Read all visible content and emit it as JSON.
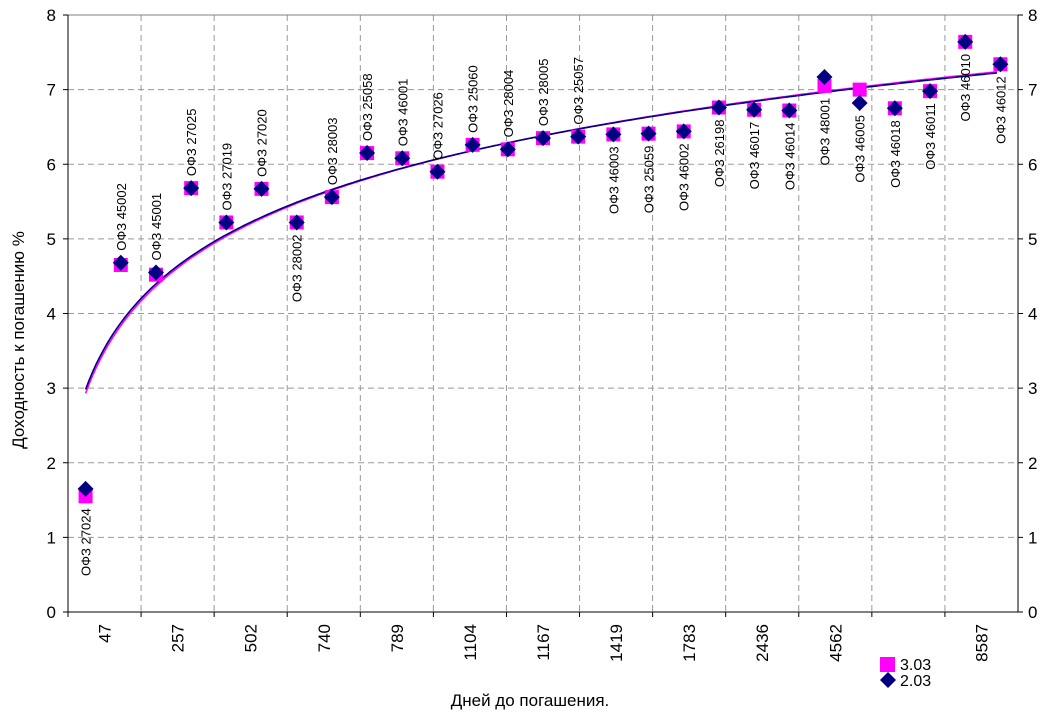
{
  "chart_data": {
    "type": "scatter",
    "xlabel": "Дней до погашения.",
    "ylabel": "Доходность к погашению %",
    "ylim": [
      0,
      8
    ],
    "yticks": [
      "0",
      "1",
      "2",
      "3",
      "4",
      "5",
      "6",
      "7",
      "8"
    ],
    "grid": true,
    "legend_position": "bottom-right",
    "x_tick_labels": [
      "47",
      "257",
      "502",
      "740",
      "789",
      "1104",
      "1167",
      "1419",
      "1783",
      "2436",
      "4562",
      "",
      "8587"
    ],
    "points": [
      {
        "label": "ОФЗ 27024",
        "s303": 1.55,
        "s203": 1.65,
        "label_side": "below"
      },
      {
        "label": "ОФЗ 45002",
        "s303": 4.65,
        "s203": 4.68,
        "label_side": "above"
      },
      {
        "label": "ОФЗ 45001",
        "s303": 4.52,
        "s203": 4.55,
        "label_side": "above"
      },
      {
        "label": "ОФЗ 27025",
        "s303": 5.68,
        "s203": 5.68,
        "label_side": "above"
      },
      {
        "label": "ОФЗ 27019",
        "s303": 5.22,
        "s203": 5.22,
        "label_side": "above"
      },
      {
        "label": "ОФЗ 27020",
        "s303": 5.67,
        "s203": 5.67,
        "label_side": "above"
      },
      {
        "label": "ОФЗ 28002",
        "s303": 5.22,
        "s203": 5.22,
        "label_side": "below"
      },
      {
        "label": "ОФЗ 28003",
        "s303": 5.56,
        "s203": 5.56,
        "label_side": "above"
      },
      {
        "label": "ОФЗ 25058",
        "s303": 6.15,
        "s203": 6.15,
        "label_side": "above"
      },
      {
        "label": "ОФЗ 46001",
        "s303": 6.08,
        "s203": 6.08,
        "label_side": "above"
      },
      {
        "label": "ОФЗ 27026",
        "s303": 5.9,
        "s203": 5.9,
        "label_side": "above"
      },
      {
        "label": "ОФЗ 25060",
        "s303": 6.26,
        "s203": 6.26,
        "label_side": "above"
      },
      {
        "label": "ОФЗ 28004",
        "s303": 6.2,
        "s203": 6.2,
        "label_side": "above"
      },
      {
        "label": "ОФЗ 28005",
        "s303": 6.35,
        "s203": 6.35,
        "label_side": "above"
      },
      {
        "label": "ОФЗ 25057",
        "s303": 6.37,
        "s203": 6.37,
        "label_side": "above"
      },
      {
        "label": "ОФЗ 46003",
        "s303": 6.4,
        "s203": 6.4,
        "label_side": "below"
      },
      {
        "label": "ОФЗ 25059",
        "s303": 6.41,
        "s203": 6.41,
        "label_side": "below"
      },
      {
        "label": "ОФЗ 46002",
        "s303": 6.44,
        "s203": 6.44,
        "label_side": "below"
      },
      {
        "label": "ОФЗ 26198",
        "s303": 6.76,
        "s203": 6.76,
        "label_side": "below"
      },
      {
        "label": "ОФЗ 46017",
        "s303": 6.73,
        "s203": 6.73,
        "label_side": "below"
      },
      {
        "label": "ОФЗ 46014",
        "s303": 6.72,
        "s203": 6.72,
        "label_side": "below"
      },
      {
        "label": "ОФЗ 48001",
        "s303": 7.05,
        "s203": 7.17,
        "label_side": "below"
      },
      {
        "label": "ОФЗ 46005",
        "s303": 7.0,
        "s203": 6.82,
        "label_side": "below"
      },
      {
        "label": "ОФЗ 46018",
        "s303": 6.75,
        "s203": 6.75,
        "label_side": "below"
      },
      {
        "label": "ОФЗ 46011",
        "s303": 6.98,
        "s203": 6.98,
        "label_side": "below"
      },
      {
        "label": "ОФЗ 46010",
        "s303": 7.64,
        "s203": 7.64,
        "label_side": "below"
      },
      {
        "label": "ОФЗ 46012",
        "s303": 7.34,
        "s203": 7.34,
        "label_side": "below"
      }
    ],
    "series": [
      {
        "key": "s303",
        "name": "3.03",
        "marker": "square",
        "color": "#FF00FF"
      },
      {
        "key": "s203",
        "name": "2.03",
        "marker": "diamond",
        "color": "#000080"
      }
    ],
    "trendlines": [
      {
        "type": "logarithmic",
        "color": "#FF00FF"
      },
      {
        "type": "logarithmic",
        "color": "#000080"
      }
    ]
  }
}
